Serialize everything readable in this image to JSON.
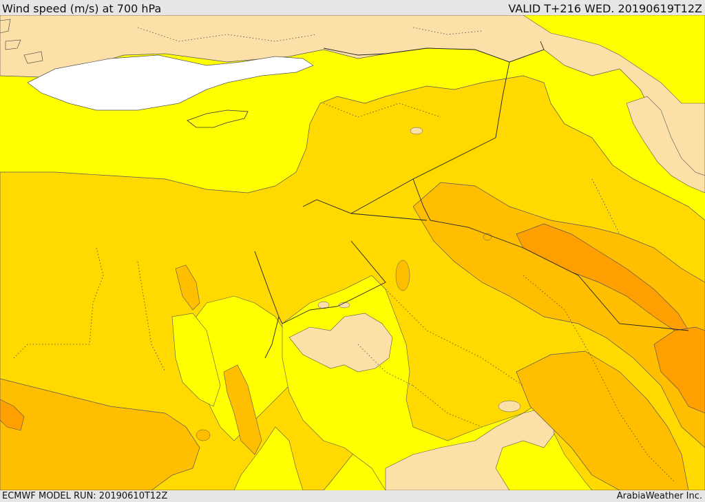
{
  "header": {
    "title": "Wind speed (m/s) at 700 hPa",
    "valid": "VALID T+216 WED. 20190619T12Z"
  },
  "footer": {
    "model_run": "ECMWF MODEL RUN: 20190610T12Z",
    "credit": "ArabiaWeather Inc."
  },
  "colors": {
    "very_low": "#ffffff",
    "low": "#fde0a8",
    "light": "#ffff00",
    "medium": "#ffd900",
    "high": "#ffbf00",
    "very_high": "#ffa000",
    "extreme": "#ff9000"
  }
}
